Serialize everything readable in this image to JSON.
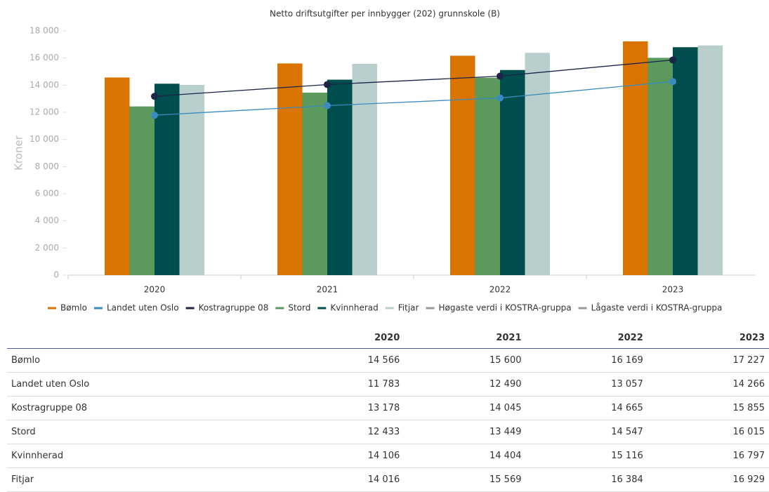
{
  "chart_data": {
    "type": "bar",
    "title": "Netto driftsutgifter per innbygger (202) grunnskole (B)",
    "y_label": "Kroner",
    "categories": [
      "2020",
      "2021",
      "2022",
      "2023"
    ],
    "ylim": [
      0,
      18000
    ],
    "yticks": [
      {
        "value": 0,
        "label": "0"
      },
      {
        "value": 2000,
        "label": "2 000"
      },
      {
        "value": 4000,
        "label": "4 000"
      },
      {
        "value": 6000,
        "label": "6 000"
      },
      {
        "value": 8000,
        "label": "8 000"
      },
      {
        "value": 10000,
        "label": "10 000"
      },
      {
        "value": 12000,
        "label": "12 000"
      },
      {
        "value": 14000,
        "label": "14 000"
      },
      {
        "value": 16000,
        "label": "16 000"
      },
      {
        "value": 18000,
        "label": "18 000"
      }
    ],
    "series": [
      {
        "name": "Bømlo",
        "type": "bar",
        "color": "#d97400",
        "values": [
          14566,
          15600,
          16169,
          17227
        ],
        "value_labels": [
          "14 566",
          "15 600",
          "16 169",
          "17 227"
        ]
      },
      {
        "name": "Landet uten Oslo",
        "type": "line",
        "color": "#3a8bc0",
        "values": [
          11783,
          12490,
          13057,
          14266
        ],
        "value_labels": [
          "11 783",
          "12 490",
          "13 057",
          "14 266"
        ]
      },
      {
        "name": "Kostragruppe 08",
        "type": "line",
        "color": "#1c2447",
        "values": [
          13178,
          14045,
          14665,
          15855
        ],
        "value_labels": [
          "13 178",
          "14 045",
          "14 665",
          "15 855"
        ]
      },
      {
        "name": "Stord",
        "type": "bar",
        "color": "#5b9a5c",
        "values": [
          12433,
          13449,
          14547,
          16015
        ],
        "value_labels": [
          "12 433",
          "13 449",
          "14 547",
          "16 015"
        ]
      },
      {
        "name": "Kvinnherad",
        "type": "bar",
        "color": "#004d4d",
        "values": [
          14106,
          14404,
          15116,
          16797
        ],
        "value_labels": [
          "14 106",
          "14 404",
          "15 116",
          "16 797"
        ]
      },
      {
        "name": "Fitjar",
        "type": "bar",
        "color": "#b8cfcd",
        "values": [
          14016,
          15569,
          16384,
          16929
        ],
        "value_labels": [
          "14 016",
          "15 569",
          "16 384",
          "16 929"
        ]
      }
    ],
    "legend_only": [
      {
        "name": "Høgaste verdi i KOSTRA-gruppa",
        "color": "#999999"
      },
      {
        "name": "Lågaste verdi i KOSTRA-gruppa",
        "color": "#999999"
      }
    ]
  }
}
